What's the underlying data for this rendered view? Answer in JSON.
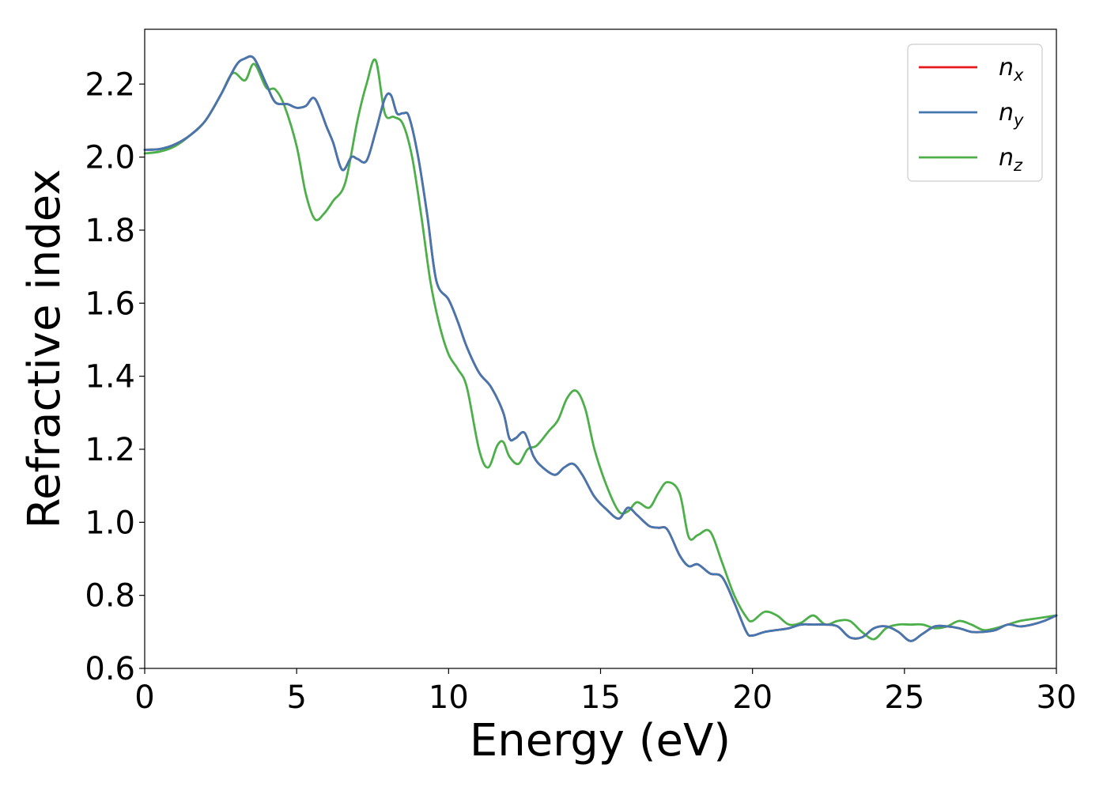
{
  "chart_data": {
    "type": "line",
    "xlabel": "Energy (eV)",
    "ylabel": "Refractive index",
    "xlim": [
      0,
      30
    ],
    "ylim": [
      0.6,
      2.35
    ],
    "xticks": [
      "0",
      "5",
      "10",
      "15",
      "20",
      "25",
      "30"
    ],
    "yticks": [
      "0.6",
      "0.8",
      "1.0",
      "1.2",
      "1.4",
      "1.6",
      "1.8",
      "2.0",
      "2.2"
    ],
    "grid": false,
    "legend_position": "top-right",
    "series": [
      {
        "name": "n_x",
        "label_base": "n",
        "label_sub": "x",
        "color": "#e41a1c",
        "x": [
          0,
          0.5,
          1.0,
          1.5,
          2.0,
          2.5,
          3.0,
          3.3,
          3.6,
          4.0,
          4.3,
          4.7,
          5.0,
          5.3,
          5.6,
          6.0,
          6.2,
          6.5,
          6.8,
          7.0,
          7.3,
          7.6,
          7.9,
          8.1,
          8.3,
          8.5,
          8.7,
          9.0,
          9.3,
          9.6,
          10.0,
          10.3,
          10.6,
          11.0,
          11.4,
          11.8,
          12.0,
          12.2,
          12.5,
          12.8,
          13.1,
          13.5,
          13.8,
          14.1,
          14.4,
          14.8,
          15.2,
          15.6,
          15.9,
          16.2,
          16.6,
          16.9,
          17.2,
          17.6,
          17.9,
          18.2,
          18.6,
          19.0,
          19.4,
          19.8,
          20.0,
          20.4,
          20.8,
          21.2,
          21.6,
          22.0,
          22.4,
          22.8,
          23.2,
          23.6,
          24.0,
          24.4,
          24.8,
          25.2,
          25.6,
          26.0,
          26.4,
          26.8,
          27.2,
          27.6,
          28.0,
          28.4,
          28.8,
          29.2,
          29.6,
          30.0
        ],
        "y": [
          2.02,
          2.022,
          2.035,
          2.06,
          2.1,
          2.17,
          2.25,
          2.27,
          2.27,
          2.2,
          2.15,
          2.145,
          2.135,
          2.14,
          2.16,
          2.08,
          2.04,
          1.965,
          2.0,
          1.995,
          1.99,
          2.07,
          2.16,
          2.17,
          2.12,
          2.12,
          2.11,
          2.0,
          1.84,
          1.66,
          1.61,
          1.55,
          1.48,
          1.41,
          1.37,
          1.3,
          1.23,
          1.23,
          1.245,
          1.18,
          1.15,
          1.13,
          1.15,
          1.16,
          1.13,
          1.07,
          1.035,
          1.01,
          1.04,
          1.02,
          0.99,
          0.985,
          0.98,
          0.91,
          0.88,
          0.885,
          0.86,
          0.85,
          0.78,
          0.7,
          0.69,
          0.7,
          0.705,
          0.71,
          0.72,
          0.72,
          0.72,
          0.715,
          0.685,
          0.685,
          0.71,
          0.715,
          0.7,
          0.675,
          0.695,
          0.715,
          0.715,
          0.71,
          0.7,
          0.7,
          0.705,
          0.72,
          0.715,
          0.72,
          0.73,
          0.745
        ]
      },
      {
        "name": "n_y",
        "label_base": "n",
        "label_sub": "y",
        "color": "#4477b0",
        "x": [
          0,
          0.5,
          1.0,
          1.5,
          2.0,
          2.5,
          3.0,
          3.3,
          3.6,
          4.0,
          4.3,
          4.7,
          5.0,
          5.3,
          5.6,
          6.0,
          6.2,
          6.5,
          6.8,
          7.0,
          7.3,
          7.6,
          7.9,
          8.1,
          8.3,
          8.5,
          8.7,
          9.0,
          9.3,
          9.6,
          10.0,
          10.3,
          10.6,
          11.0,
          11.4,
          11.8,
          12.0,
          12.2,
          12.5,
          12.8,
          13.1,
          13.5,
          13.8,
          14.1,
          14.4,
          14.8,
          15.2,
          15.6,
          15.9,
          16.2,
          16.6,
          16.9,
          17.2,
          17.6,
          17.9,
          18.2,
          18.6,
          19.0,
          19.4,
          19.8,
          20.0,
          20.4,
          20.8,
          21.2,
          21.6,
          22.0,
          22.4,
          22.8,
          23.2,
          23.6,
          24.0,
          24.4,
          24.8,
          25.2,
          25.6,
          26.0,
          26.4,
          26.8,
          27.2,
          27.6,
          28.0,
          28.4,
          28.8,
          29.2,
          29.6,
          30.0
        ],
        "y": [
          2.02,
          2.022,
          2.035,
          2.06,
          2.1,
          2.17,
          2.25,
          2.27,
          2.27,
          2.2,
          2.15,
          2.145,
          2.135,
          2.14,
          2.16,
          2.08,
          2.04,
          1.965,
          2.0,
          1.995,
          1.99,
          2.07,
          2.16,
          2.17,
          2.12,
          2.12,
          2.11,
          2.0,
          1.84,
          1.66,
          1.61,
          1.55,
          1.48,
          1.41,
          1.37,
          1.3,
          1.23,
          1.23,
          1.245,
          1.18,
          1.15,
          1.13,
          1.15,
          1.16,
          1.13,
          1.07,
          1.035,
          1.01,
          1.04,
          1.02,
          0.99,
          0.985,
          0.98,
          0.91,
          0.88,
          0.885,
          0.86,
          0.85,
          0.78,
          0.7,
          0.69,
          0.7,
          0.705,
          0.71,
          0.72,
          0.72,
          0.72,
          0.715,
          0.685,
          0.685,
          0.71,
          0.715,
          0.7,
          0.675,
          0.695,
          0.715,
          0.715,
          0.71,
          0.7,
          0.7,
          0.705,
          0.72,
          0.715,
          0.72,
          0.73,
          0.745
        ]
      },
      {
        "name": "n_z",
        "label_base": "n",
        "label_sub": "z",
        "color": "#4daf4a",
        "x": [
          0,
          0.5,
          1.0,
          1.5,
          2.0,
          2.5,
          2.9,
          3.3,
          3.6,
          4.0,
          4.3,
          4.6,
          5.0,
          5.3,
          5.6,
          5.9,
          6.2,
          6.6,
          7.0,
          7.3,
          7.6,
          7.9,
          8.2,
          8.5,
          8.8,
          9.1,
          9.4,
          9.7,
          10.0,
          10.3,
          10.6,
          11.0,
          11.3,
          11.6,
          11.8,
          12.0,
          12.3,
          12.6,
          12.9,
          13.3,
          13.6,
          13.9,
          14.2,
          14.5,
          14.8,
          15.2,
          15.6,
          15.9,
          16.2,
          16.6,
          16.9,
          17.2,
          17.6,
          17.9,
          18.2,
          18.6,
          19.0,
          19.4,
          19.8,
          20.0,
          20.4,
          20.8,
          21.2,
          21.6,
          22.0,
          22.4,
          22.8,
          23.2,
          23.6,
          24.0,
          24.4,
          24.8,
          25.2,
          25.6,
          26.0,
          26.4,
          26.8,
          27.2,
          27.6,
          28.0,
          28.4,
          28.8,
          29.2,
          29.6,
          30.0
        ],
        "y": [
          2.01,
          2.015,
          2.03,
          2.06,
          2.1,
          2.17,
          2.23,
          2.21,
          2.255,
          2.19,
          2.185,
          2.14,
          2.03,
          1.9,
          1.83,
          1.845,
          1.88,
          1.93,
          2.1,
          2.2,
          2.265,
          2.12,
          2.11,
          2.09,
          2.0,
          1.84,
          1.66,
          1.54,
          1.46,
          1.42,
          1.37,
          1.2,
          1.15,
          1.21,
          1.22,
          1.18,
          1.16,
          1.2,
          1.21,
          1.25,
          1.28,
          1.34,
          1.36,
          1.31,
          1.2,
          1.1,
          1.03,
          1.03,
          1.055,
          1.04,
          1.08,
          1.11,
          1.08,
          0.96,
          0.965,
          0.975,
          0.89,
          0.8,
          0.74,
          0.73,
          0.755,
          0.745,
          0.72,
          0.725,
          0.745,
          0.72,
          0.73,
          0.73,
          0.7,
          0.68,
          0.71,
          0.72,
          0.72,
          0.72,
          0.71,
          0.715,
          0.73,
          0.72,
          0.705,
          0.71,
          0.72,
          0.73,
          0.735,
          0.74,
          0.745
        ]
      }
    ]
  }
}
